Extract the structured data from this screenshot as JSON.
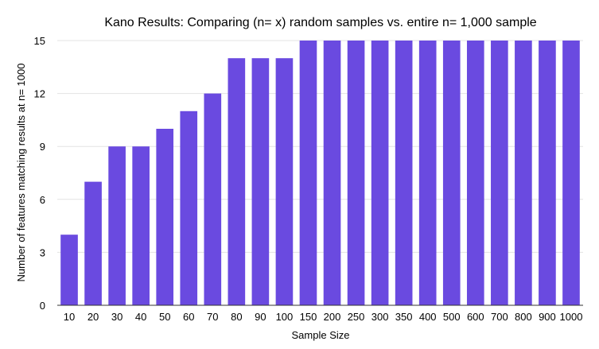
{
  "chart_data": {
    "type": "bar",
    "title": "Kano Results: Comparing (n= x) random samples vs. entire n= 1,000 sample",
    "xlabel": "Sample Size",
    "ylabel": "Number of features matching results at n= 1000",
    "categories": [
      "10",
      "20",
      "30",
      "40",
      "50",
      "60",
      "70",
      "80",
      "90",
      "100",
      "150",
      "200",
      "250",
      "300",
      "350",
      "400",
      "500",
      "600",
      "700",
      "800",
      "900",
      "1000"
    ],
    "values": [
      4,
      7,
      9,
      9,
      10,
      11,
      12,
      14,
      14,
      14,
      15,
      15,
      15,
      15,
      15,
      15,
      15,
      15,
      15,
      15,
      15,
      15
    ],
    "ylim": [
      0,
      15
    ],
    "yticks": [
      "0",
      "3",
      "6",
      "9",
      "12",
      "15"
    ],
    "grid": true,
    "legend": "none",
    "colors": {
      "bar": "#6a4ae0",
      "grid": "#e3e3e3",
      "axis": "#333333"
    }
  }
}
